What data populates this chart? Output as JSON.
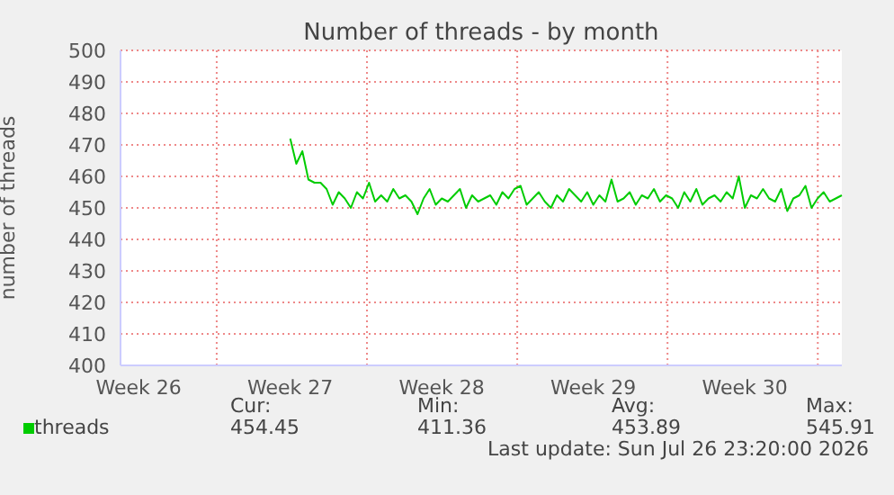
{
  "chart_data": {
    "type": "line",
    "title": "Number of threads - by month",
    "ylabel": "number of threads",
    "categories": [
      null,
      null,
      null,
      "Week 26",
      null,
      null,
      null,
      null,
      null,
      null,
      null,
      null,
      null,
      null,
      null,
      null,
      null,
      null,
      null,
      null,
      null,
      null,
      null,
      null,
      null,
      null,
      null,
      null,
      "Week 27",
      null,
      null,
      null,
      null,
      null,
      null,
      null,
      null,
      null,
      null,
      null,
      null,
      null,
      null,
      null,
      null,
      null,
      null,
      null,
      null,
      null,
      null,
      null,
      null,
      "Week 28",
      null,
      null,
      null,
      null,
      null,
      null,
      null,
      null,
      null,
      null,
      null,
      null,
      null,
      null,
      null,
      null,
      null,
      null,
      null,
      null,
      null,
      null,
      null,
      null,
      "Week 29",
      null,
      null,
      null,
      null,
      null,
      null,
      null,
      null,
      null,
      null,
      null,
      null,
      null,
      null,
      null,
      null,
      null,
      null,
      null,
      null,
      null,
      null,
      null,
      null,
      "Week 30",
      null,
      null,
      null,
      null,
      null,
      null,
      null,
      null,
      null,
      null,
      null,
      null,
      null,
      null,
      null,
      null
    ],
    "ylim": [
      400,
      500
    ],
    "yticks": [
      400,
      410,
      420,
      430,
      440,
      450,
      460,
      470,
      480,
      490,
      500
    ],
    "grid": true,
    "legend": "bottom left",
    "marker": "none",
    "line_style": "solid",
    "annotations": [
      "Cur:",
      "454.45",
      "Min:",
      "411.36",
      "Avg:",
      "453.89",
      "Max:",
      "545.91",
      "Last update: Sun Jul 26 23:20:00 2026"
    ],
    "series": [
      {
        "name": "threads",
        "color": "#00cc00",
        "values": [
          null,
          null,
          null,
          null,
          null,
          null,
          null,
          null,
          null,
          null,
          null,
          null,
          null,
          null,
          null,
          null,
          null,
          null,
          null,
          null,
          null,
          null,
          null,
          null,
          null,
          null,
          null,
          null,
          472,
          464,
          468,
          459,
          458,
          458,
          456,
          451,
          455,
          453,
          450,
          455,
          453,
          458,
          452,
          454,
          452,
          456,
          453,
          454,
          452,
          448,
          453,
          456,
          451,
          453,
          452,
          454,
          456,
          450,
          454,
          452,
          453,
          454,
          451,
          455,
          453,
          456,
          457,
          451,
          453,
          455,
          452,
          450,
          454,
          452,
          456,
          454,
          452,
          455,
          451,
          454,
          452,
          459,
          452,
          453,
          455,
          451,
          454,
          453,
          456,
          452,
          454,
          453,
          450,
          455,
          452,
          456,
          451,
          453,
          454,
          452,
          455,
          453,
          460,
          450,
          454,
          453,
          456,
          453,
          452,
          456,
          449,
          453,
          454,
          457,
          450,
          453,
          455,
          452,
          453,
          454
        ]
      }
    ]
  }
}
